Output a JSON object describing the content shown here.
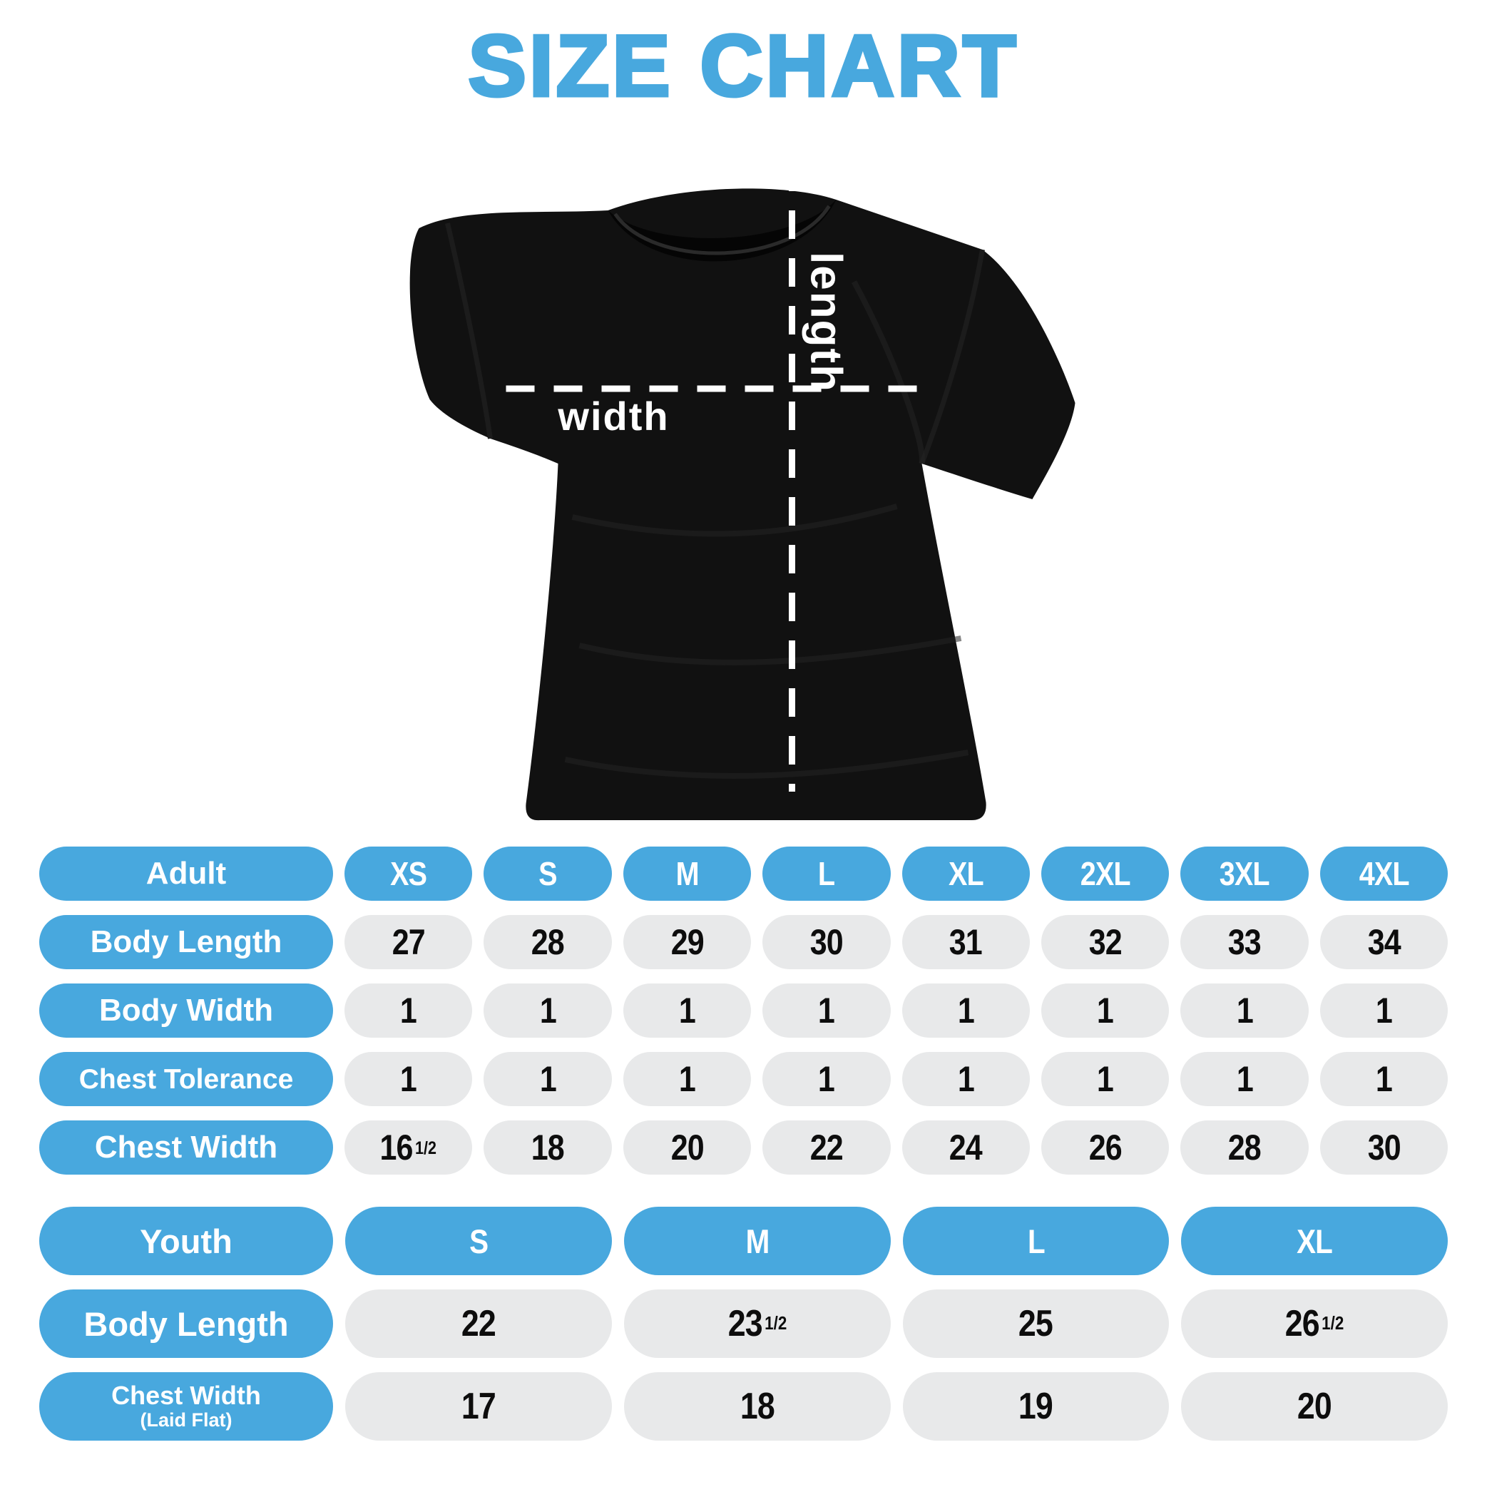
{
  "title": "SIZE CHART",
  "colors": {
    "accent": "#48a8de",
    "cell_gray": "#e8e9ea",
    "value_ink": "#0d0d0d",
    "shirt": "#111111",
    "measure_line": "#ffffff"
  },
  "shirt": {
    "length_label": "length",
    "width_label": "width"
  },
  "adult_table": {
    "header": [
      "Adult",
      "XS",
      "S",
      "M",
      "L",
      "XL",
      "2XL",
      "3XL",
      "4XL"
    ],
    "rows": [
      {
        "label": "Body Length",
        "values": [
          "27",
          "28",
          "29",
          "30",
          "31",
          "32",
          "33",
          "34"
        ]
      },
      {
        "label": "Body Width",
        "values": [
          "1",
          "1",
          "1",
          "1",
          "1",
          "1",
          "1",
          "1"
        ]
      },
      {
        "label": "Chest Tolerance",
        "values": [
          "1",
          "1",
          "1",
          "1",
          "1",
          "1",
          "1",
          "1"
        ]
      },
      {
        "label": "Chest Width",
        "values": [
          "16½",
          "18",
          "20",
          "22",
          "24",
          "26",
          "28",
          "30"
        ]
      }
    ]
  },
  "youth_table": {
    "header": [
      "Youth",
      "S",
      "M",
      "L",
      "XL"
    ],
    "rows": [
      {
        "label": "Body Length",
        "values": [
          "22",
          "23½",
          "25",
          "26½"
        ]
      },
      {
        "label": "Chest Width",
        "label_sub": "(Laid Flat)",
        "values": [
          "17",
          "18",
          "19",
          "20"
        ]
      }
    ]
  },
  "chart_data": [
    {
      "type": "table",
      "title": "Adult size chart",
      "columns": [
        "Adult",
        "XS",
        "S",
        "M",
        "L",
        "XL",
        "2XL",
        "3XL",
        "4XL"
      ],
      "rows": [
        [
          "Body Length",
          27,
          28,
          29,
          30,
          31,
          32,
          33,
          34
        ],
        [
          "Body Width",
          1,
          1,
          1,
          1,
          1,
          1,
          1,
          1
        ],
        [
          "Chest Tolerance",
          1,
          1,
          1,
          1,
          1,
          1,
          1,
          1
        ],
        [
          "Chest Width",
          16.5,
          18,
          20,
          22,
          24,
          26,
          28,
          30
        ]
      ]
    },
    {
      "type": "table",
      "title": "Youth size chart",
      "columns": [
        "Youth",
        "S",
        "M",
        "L",
        "XL"
      ],
      "rows": [
        [
          "Body Length",
          22,
          23.5,
          25,
          26.5
        ],
        [
          "Chest Width (Laid Flat)",
          17,
          18,
          19,
          20
        ]
      ]
    }
  ]
}
